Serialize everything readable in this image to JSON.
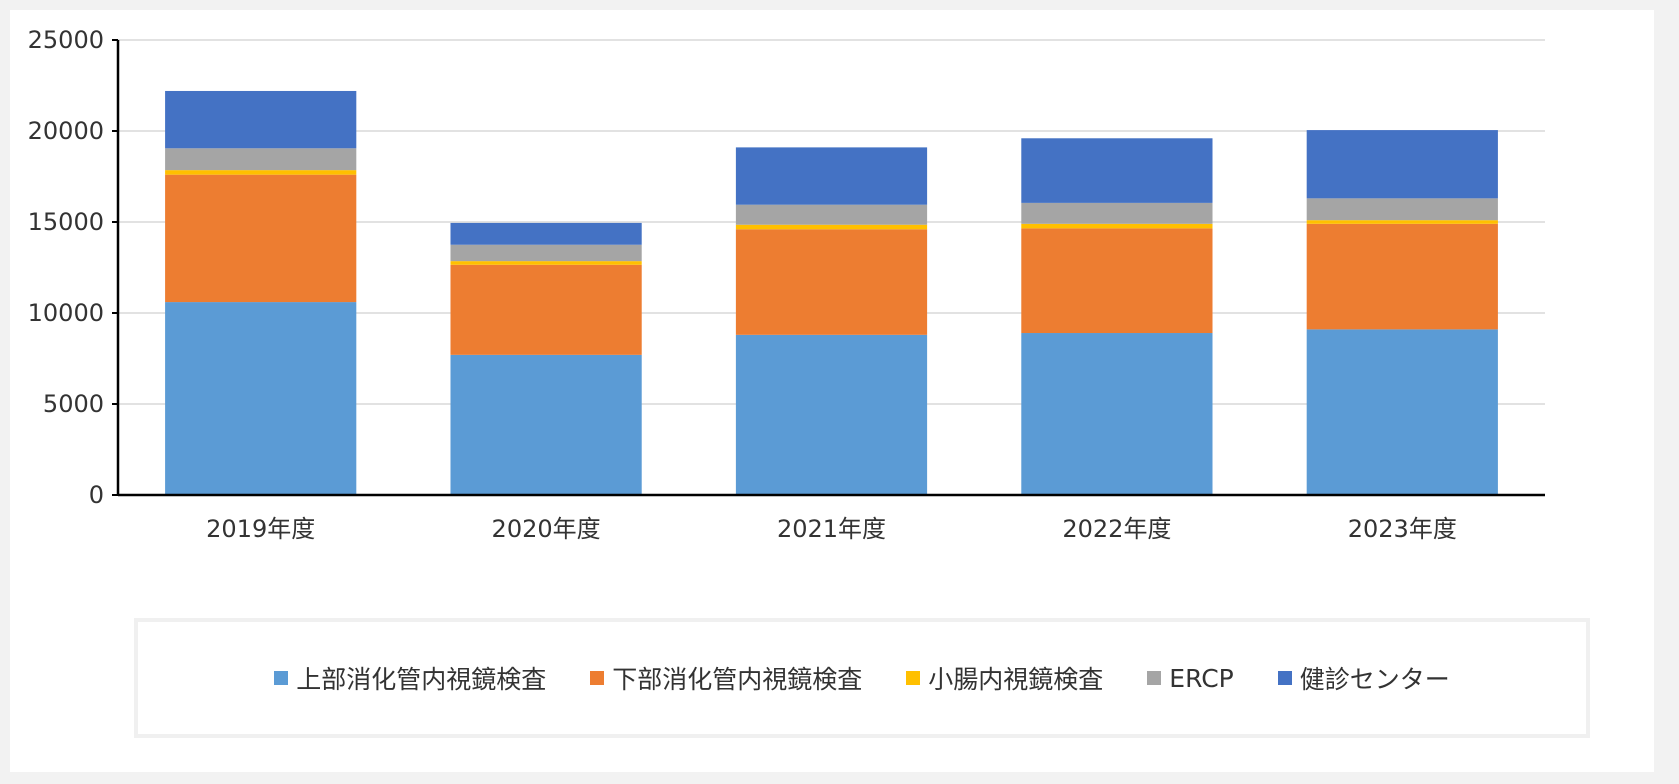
{
  "chart_data": {
    "type": "bar",
    "stacked": true,
    "categories": [
      "2019年度",
      "2020年度",
      "2021年度",
      "2022年度",
      "2023年度"
    ],
    "series": [
      {
        "name": "上部消化管内視鏡検査",
        "color": "#5b9bd5",
        "values": [
          10600,
          7700,
          8800,
          8900,
          9100
        ]
      },
      {
        "name": "下部消化管内視鏡検査",
        "color": "#ed7d31",
        "values": [
          7000,
          4950,
          5800,
          5750,
          5800
        ]
      },
      {
        "name": "小腸内視鏡検査",
        "color": "#ffc000",
        "values": [
          250,
          200,
          250,
          250,
          200
        ]
      },
      {
        "name": "ERCP",
        "color": "#a5a5a5",
        "values": [
          1200,
          900,
          1100,
          1150,
          1200
        ]
      },
      {
        "name": "健診センター",
        "color": "#4472c4",
        "values": [
          3150,
          1200,
          3150,
          3550,
          3750
        ]
      }
    ],
    "ylim": [
      0,
      25000
    ],
    "yticks": [
      0,
      5000,
      10000,
      15000,
      20000,
      25000
    ],
    "grid": true,
    "legend_position": "bottom"
  }
}
